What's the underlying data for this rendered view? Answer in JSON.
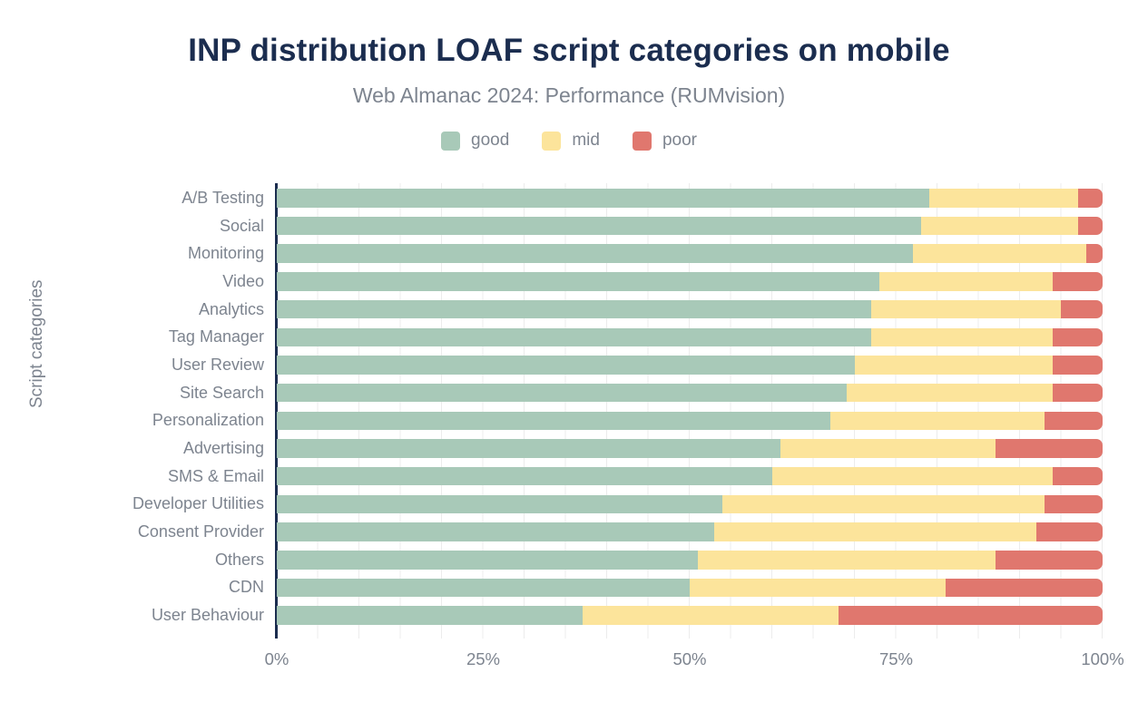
{
  "header": {
    "title": "INP distribution LOAF script categories on mobile",
    "subtitle": "Web Almanac 2024: Performance (RUMvision)"
  },
  "colors": {
    "good": "#a8c9b8",
    "mid": "#fce49b",
    "poor": "#e0776e",
    "title_text": "#1b2d4f",
    "axis_text": "#7d848f",
    "axis_line": "#1b2d4f",
    "gridline": "#ececec",
    "background": "#ffffff"
  },
  "chart_data": {
    "type": "bar",
    "orientation": "horizontal",
    "stacked": true,
    "unit": "%",
    "title": "INP distribution LOAF script categories on mobile",
    "subtitle": "Web Almanac 2024: Performance (RUMvision)",
    "xlabel": "",
    "ylabel": "Script categories",
    "xlim": [
      0,
      100
    ],
    "x_ticks": [
      "0%",
      "25%",
      "50%",
      "75%",
      "100%"
    ],
    "x_tick_values": [
      0,
      25,
      50,
      75,
      100
    ],
    "gridlines": "vertical, every 5%",
    "legend_position": "top-center",
    "categories": [
      "A/B Testing",
      "Social",
      "Monitoring",
      "Video",
      "Analytics",
      "Tag Manager",
      "User Review",
      "Site Search",
      "Personalization",
      "Advertising",
      "SMS & Email",
      "Developer Utilities",
      "Consent Provider",
      "Others",
      "CDN",
      "User Behaviour"
    ],
    "series": [
      {
        "name": "good",
        "color": "#a8c9b8",
        "values": [
          79,
          78,
          77,
          73,
          72,
          72,
          70,
          69,
          67,
          61,
          60,
          54,
          53,
          51,
          50,
          37
        ]
      },
      {
        "name": "mid",
        "color": "#fce49b",
        "values": [
          18,
          19,
          21,
          21,
          23,
          22,
          24,
          25,
          26,
          26,
          34,
          39,
          39,
          36,
          31,
          31
        ]
      },
      {
        "name": "poor",
        "color": "#e0776e",
        "values": [
          3,
          3,
          2,
          6,
          5,
          6,
          6,
          6,
          7,
          13,
          6,
          7,
          8,
          13,
          19,
          32
        ]
      }
    ]
  }
}
